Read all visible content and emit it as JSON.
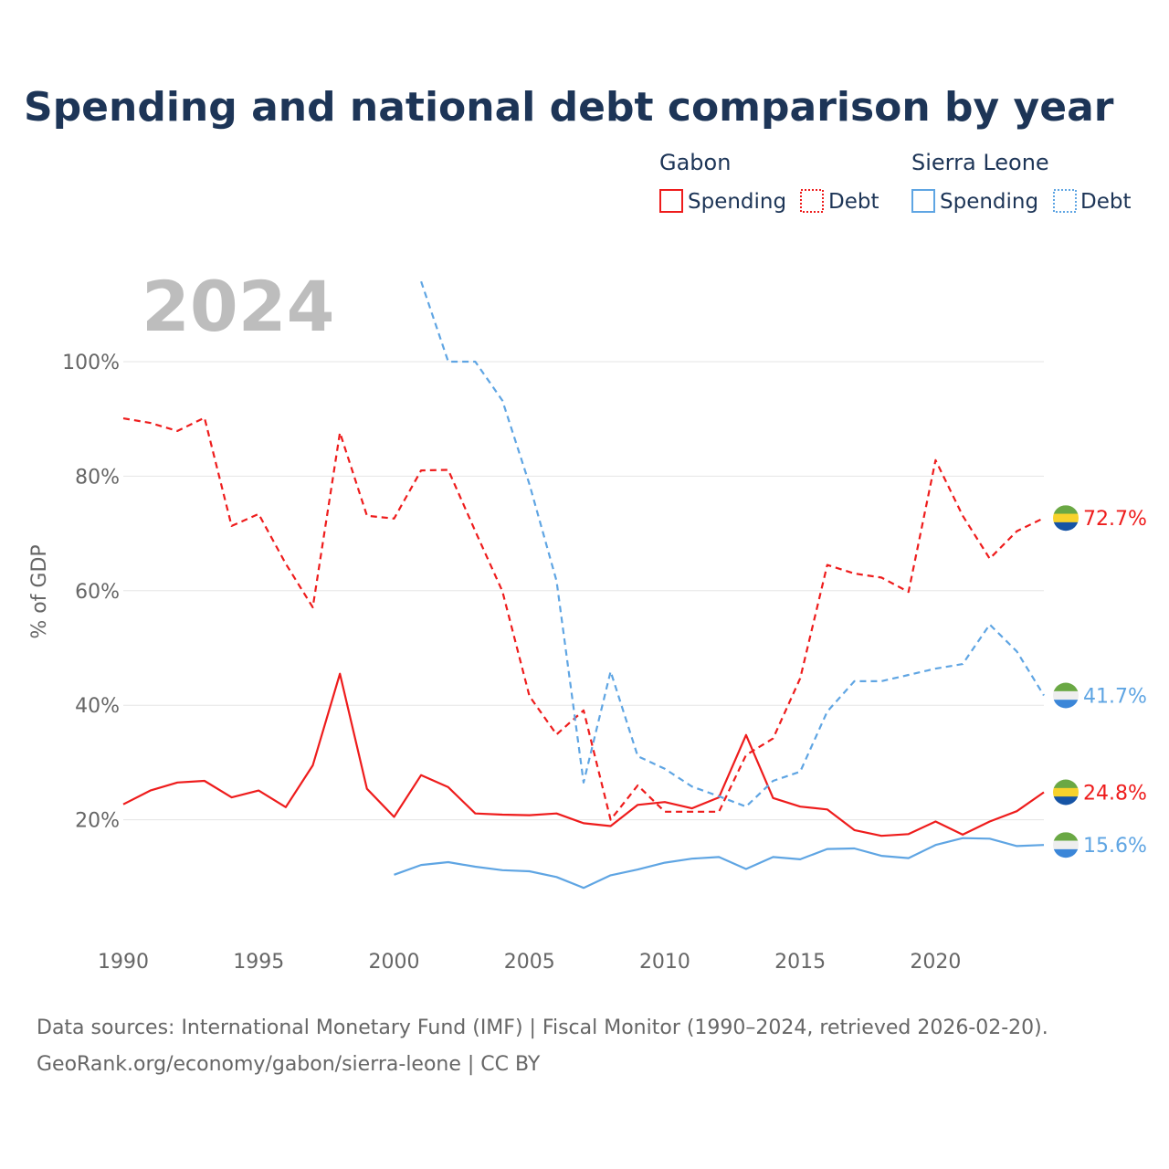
{
  "colors": {
    "gabon": "#ee1c1c",
    "sierra_leone": "#5fa5e3",
    "title": "#1d3557",
    "grid": "#e5e5e5",
    "muted": "#666666"
  },
  "year_badge": "2024",
  "legend": {
    "groups": [
      {
        "country": "Gabon",
        "items": [
          {
            "label": "Spending",
            "style": "solid"
          },
          {
            "label": "Debt",
            "style": "dotted"
          }
        ]
      },
      {
        "country": "Sierra Leone",
        "items": [
          {
            "label": "Spending",
            "style": "solid"
          },
          {
            "label": "Debt",
            "style": "dotted"
          }
        ]
      }
    ]
  },
  "source_line_1": "Data sources: International Monetary Fund (IMF) | Fiscal Monitor (1990–2024, retrieved 2026-02-20).",
  "source_line_2": "GeoRank.org/economy/gabon/sierra-leone | CC BY",
  "chart_data": {
    "type": "line",
    "title": "Spending and national debt comparison by year",
    "xlabel": "",
    "ylabel": "% of GDP",
    "xlim": [
      1990,
      2024
    ],
    "ylim": [
      0,
      115
    ],
    "x_ticks": [
      1990,
      1995,
      2000,
      2005,
      2010,
      2015,
      2020
    ],
    "y_ticks": [
      20,
      40,
      60,
      80,
      100
    ],
    "y_tick_labels": [
      "20%",
      "40%",
      "60%",
      "80%",
      "100%"
    ],
    "grid": true,
    "series": [
      {
        "name": "Gabon Debt",
        "country": "Gabon",
        "color": "#ee1c1c",
        "dash": true,
        "end_label": "72.7%",
        "x": [
          1990,
          1991,
          1992,
          1993,
          1994,
          1995,
          1996,
          1997,
          1998,
          1999,
          2000,
          2001,
          2002,
          2003,
          2004,
          2005,
          2006,
          2007,
          2008,
          2009,
          2010,
          2011,
          2012,
          2013,
          2014,
          2015,
          2016,
          2017,
          2018,
          2019,
          2020,
          2021,
          2022,
          2023,
          2024
        ],
        "values": [
          90.1,
          89.3,
          87.9,
          90.2,
          71.3,
          73.4,
          64.7,
          57.1,
          87.6,
          73.1,
          72.6,
          81.0,
          81.1,
          70.4,
          59.9,
          41.6,
          34.9,
          39.1,
          20.0,
          26.0,
          21.4,
          21.4,
          21.4,
          31.3,
          34.2,
          44.7,
          64.5,
          63.0,
          62.3,
          59.8,
          82.8,
          73.1,
          65.6,
          70.4,
          72.7
        ]
      },
      {
        "name": "Gabon Spending",
        "country": "Gabon",
        "color": "#ee1c1c",
        "dash": false,
        "end_label": "24.8%",
        "x": [
          1990,
          1991,
          1992,
          1993,
          1994,
          1995,
          1996,
          1997,
          1998,
          1999,
          2000,
          2001,
          2002,
          2003,
          2004,
          2005,
          2006,
          2007,
          2008,
          2009,
          2010,
          2011,
          2012,
          2013,
          2014,
          2015,
          2016,
          2017,
          2018,
          2019,
          2020,
          2021,
          2022,
          2023,
          2024
        ],
        "values": [
          22.7,
          25.1,
          26.5,
          26.8,
          23.9,
          25.1,
          22.2,
          29.5,
          45.5,
          25.4,
          20.5,
          27.8,
          25.7,
          21.1,
          20.9,
          20.8,
          21.1,
          19.4,
          18.9,
          22.6,
          23.1,
          22.0,
          23.9,
          34.8,
          23.8,
          22.3,
          21.8,
          18.2,
          17.2,
          17.5,
          19.7,
          17.4,
          19.7,
          21.5,
          24.8
        ]
      },
      {
        "name": "Sierra Leone Debt",
        "country": "Sierra Leone",
        "color": "#5fa5e3",
        "dash": true,
        "end_label": "41.7%",
        "x": [
          2001,
          2002,
          2003,
          2004,
          2005,
          2006,
          2007,
          2008,
          2009,
          2010,
          2011,
          2012,
          2013,
          2014,
          2015,
          2016,
          2017,
          2018,
          2019,
          2020,
          2021,
          2022,
          2023,
          2024
        ],
        "values": [
          114,
          100,
          100,
          93.2,
          78.6,
          61.7,
          26.5,
          45.9,
          31.1,
          28.9,
          25.8,
          24.1,
          22.3,
          26.8,
          28.4,
          38.9,
          44.2,
          44.2,
          45.3,
          46.4,
          47.2,
          54.1,
          49.4,
          41.7
        ]
      },
      {
        "name": "Sierra Leone Spending",
        "country": "Sierra Leone",
        "color": "#5fa5e3",
        "dash": false,
        "end_label": "15.6%",
        "x": [
          2000,
          2001,
          2002,
          2003,
          2004,
          2005,
          2006,
          2007,
          2008,
          2009,
          2010,
          2011,
          2012,
          2013,
          2014,
          2015,
          2016,
          2017,
          2018,
          2019,
          2020,
          2021,
          2022,
          2023,
          2024
        ],
        "values": [
          10.4,
          12.1,
          12.6,
          11.8,
          11.2,
          11.0,
          10.0,
          8.1,
          10.3,
          11.3,
          12.5,
          13.2,
          13.5,
          11.4,
          13.5,
          13.1,
          14.9,
          15.0,
          13.7,
          13.3,
          15.6,
          16.8,
          16.7,
          15.4,
          15.6
        ]
      }
    ]
  }
}
